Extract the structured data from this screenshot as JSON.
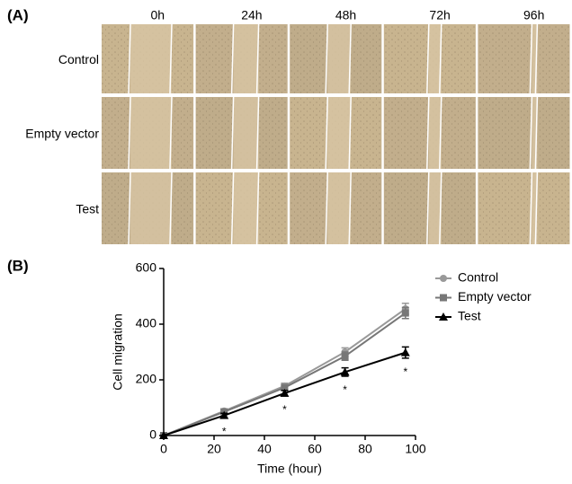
{
  "panel_a": {
    "label": "(A)",
    "columns": [
      "0h",
      "24h",
      "48h",
      "72h",
      "96h"
    ],
    "rows": [
      "Control",
      "Empty vector",
      "Test"
    ]
  },
  "panel_b": {
    "label": "(B)"
  },
  "chart_data": {
    "type": "line",
    "xlabel": "Time (hour)",
    "ylabel": "Cell migration",
    "x": [
      0,
      24,
      48,
      72,
      96
    ],
    "series": [
      {
        "name": "Control",
        "color": "#999999",
        "marker": "circle",
        "values": [
          0,
          88,
          178,
          300,
          455
        ],
        "errors": [
          0,
          8,
          10,
          15,
          20
        ]
      },
      {
        "name": "Empty vector",
        "color": "#777777",
        "marker": "square",
        "values": [
          0,
          85,
          172,
          285,
          440
        ],
        "errors": [
          0,
          8,
          10,
          15,
          20
        ]
      },
      {
        "name": "Test",
        "color": "#000000",
        "marker": "triangle",
        "values": [
          0,
          72,
          152,
          228,
          298
        ],
        "errors": [
          0,
          8,
          10,
          15,
          20
        ]
      }
    ],
    "significance_marks": [
      "*",
      "*",
      "*",
      "*"
    ],
    "xlim": [
      0,
      100
    ],
    "xticks": [
      0,
      20,
      40,
      60,
      80,
      100
    ],
    "ylim": [
      0,
      600
    ],
    "yticks": [
      0,
      200,
      400,
      600
    ],
    "legend": "upper-right"
  }
}
